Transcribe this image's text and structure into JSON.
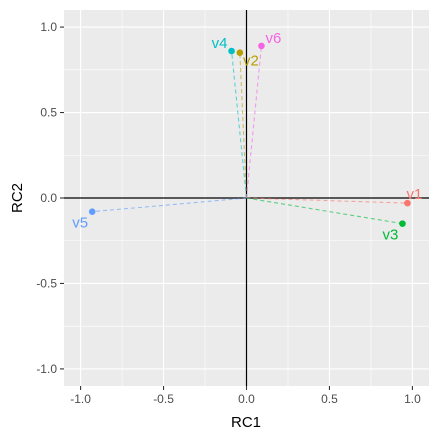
{
  "chart_data": {
    "type": "scatter",
    "xlabel": "RC1",
    "ylabel": "RC2",
    "xlim": [
      -1.1,
      1.1
    ],
    "ylim": [
      -1.1,
      1.1
    ],
    "xticks": [
      -1.0,
      -0.5,
      0.0,
      0.5,
      1.0
    ],
    "yticks": [
      -1.0,
      -0.5,
      0.0,
      0.5,
      1.0
    ],
    "xtick_labels": [
      "-1.0",
      "-0.5",
      "0.0",
      "0.5",
      "1.0"
    ],
    "ytick_labels": [
      "-1.0",
      "-0.5",
      "0.0",
      "0.5",
      "1.0"
    ],
    "grid": true,
    "reference_lines": {
      "x": 0,
      "y": 0
    },
    "points": [
      {
        "label": "v1",
        "x": 0.97,
        "y": -0.03,
        "color": "#F8766D"
      },
      {
        "label": "v2",
        "x": -0.04,
        "y": 0.85,
        "color": "#B79F00"
      },
      {
        "label": "v3",
        "x": 0.94,
        "y": -0.15,
        "color": "#00BA38"
      },
      {
        "label": "v4",
        "x": -0.09,
        "y": 0.86,
        "color": "#00BFC4"
      },
      {
        "label": "v5",
        "x": -0.93,
        "y": -0.08,
        "color": "#619CFF"
      },
      {
        "label": "v6",
        "x": 0.09,
        "y": 0.89,
        "color": "#F564E3"
      }
    ]
  }
}
